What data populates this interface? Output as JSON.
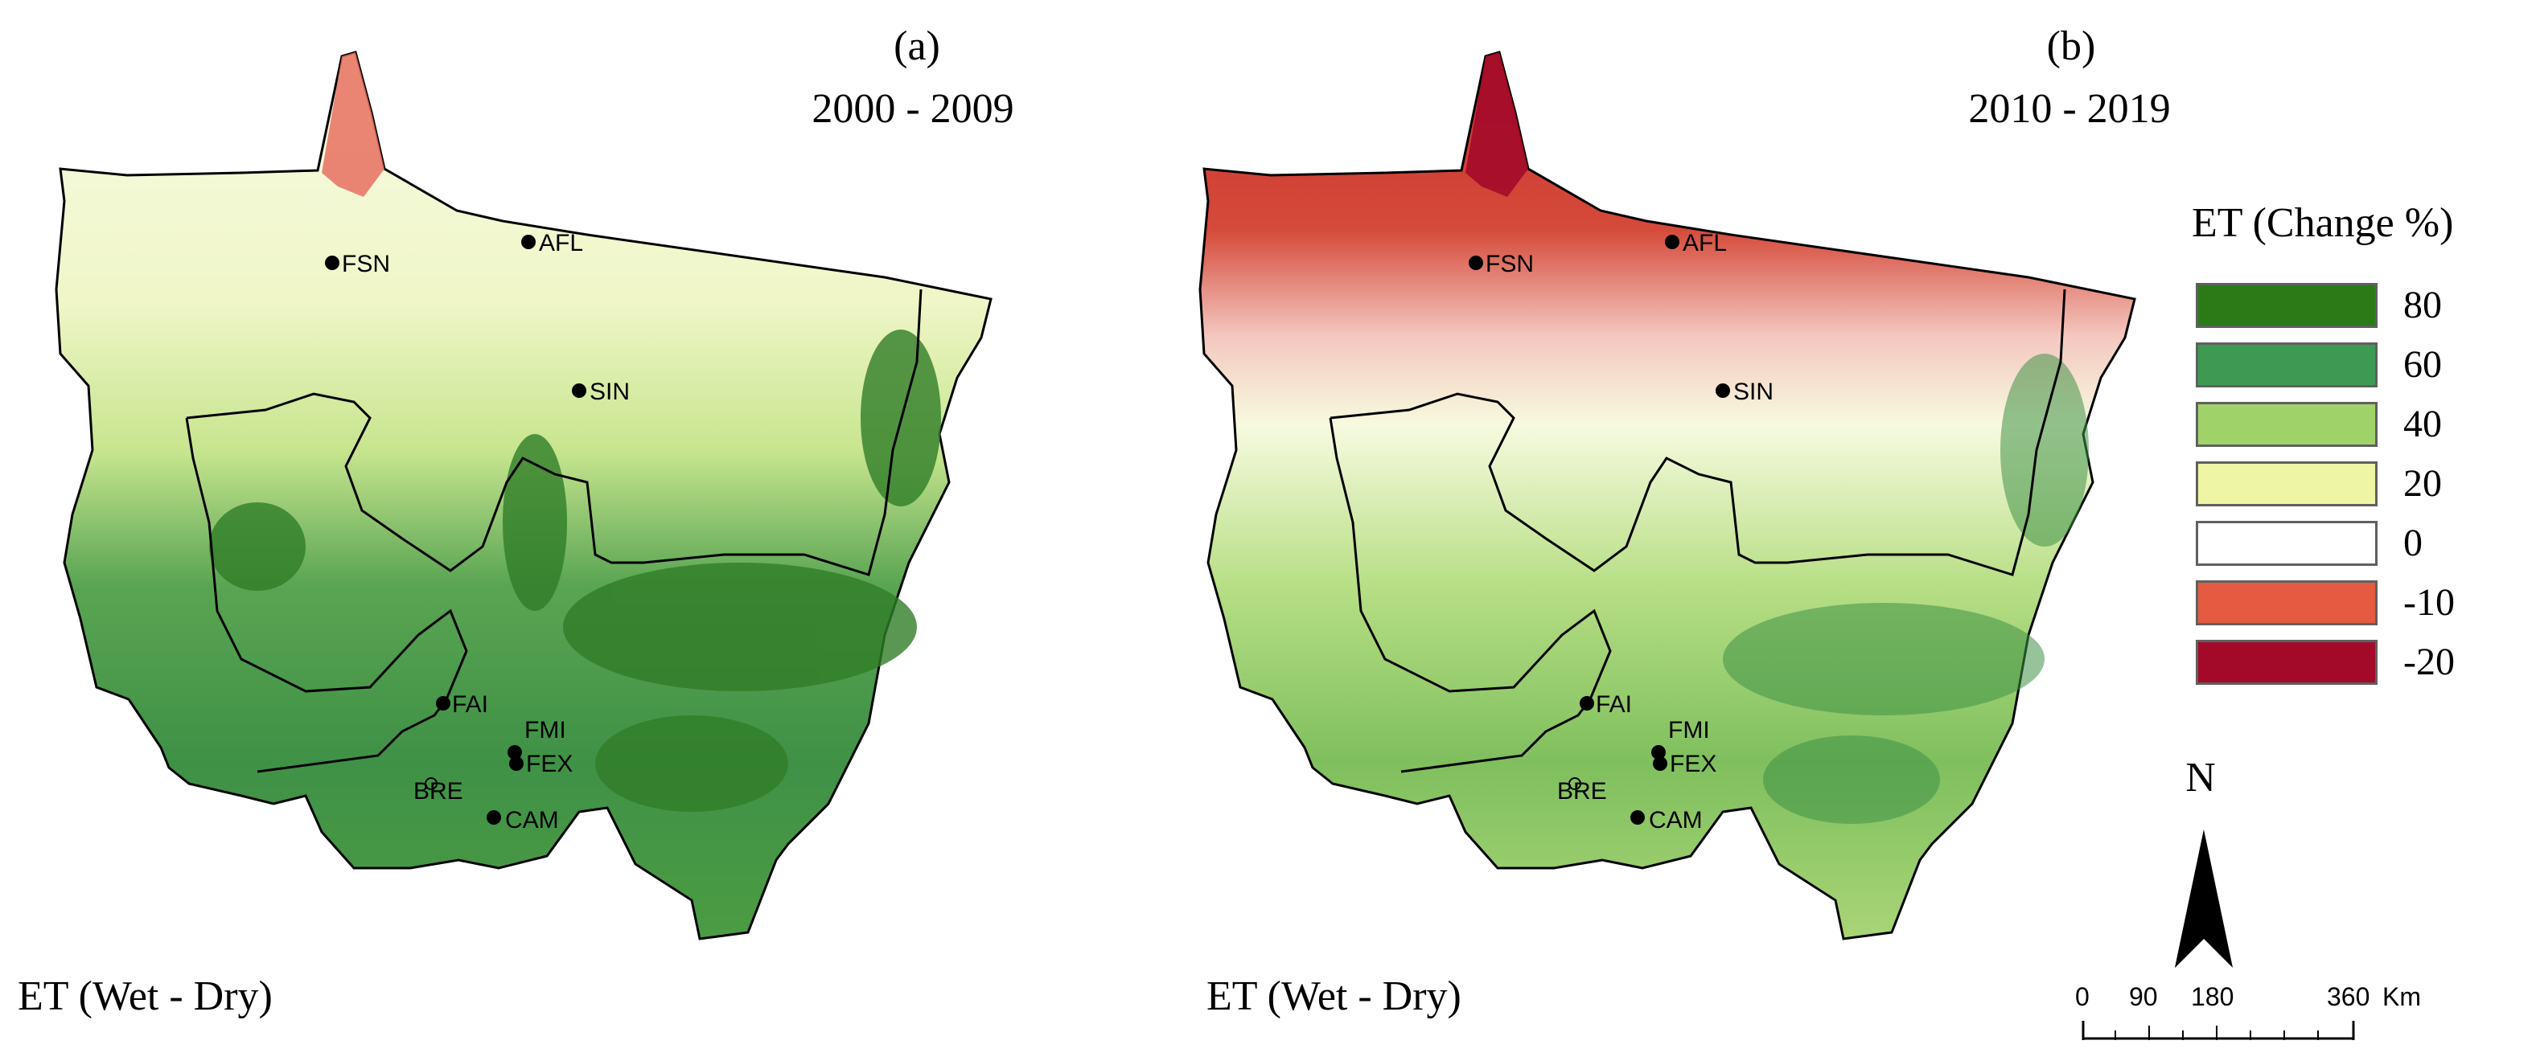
{
  "panels": [
    {
      "letter": "(a)",
      "years": "2000 - 2009",
      "caption": "ET (Wet - Dry)"
    },
    {
      "letter": "(b)",
      "years": "2010 - 2019",
      "caption": "ET (Wet - Dry)"
    }
  ],
  "sites": [
    {
      "name": "FSN"
    },
    {
      "name": "AFL"
    },
    {
      "name": "SIN"
    },
    {
      "name": "FAI"
    },
    {
      "name": "FMI"
    },
    {
      "name": "FEX"
    },
    {
      "name": "BRE"
    },
    {
      "name": "CAM"
    }
  ],
  "legend": {
    "title": "ET (Change %)",
    "classes": [
      {
        "label": "80",
        "color": "#2a7a18"
      },
      {
        "label": "60",
        "color": "#3d9a52"
      },
      {
        "label": "40",
        "color": "#9fd36a"
      },
      {
        "label": "20",
        "color": "#eef5a4"
      },
      {
        "label": "0",
        "color": "#ffffff"
      },
      {
        "label": "-10",
        "color": "#e55a40"
      },
      {
        "label": "-20",
        "color": "#a30a2a"
      }
    ]
  },
  "north_arrow": {
    "label": "N"
  },
  "scale_bar": {
    "ticks": [
      "0",
      "90",
      "180",
      "360"
    ],
    "unit": "Km"
  }
}
